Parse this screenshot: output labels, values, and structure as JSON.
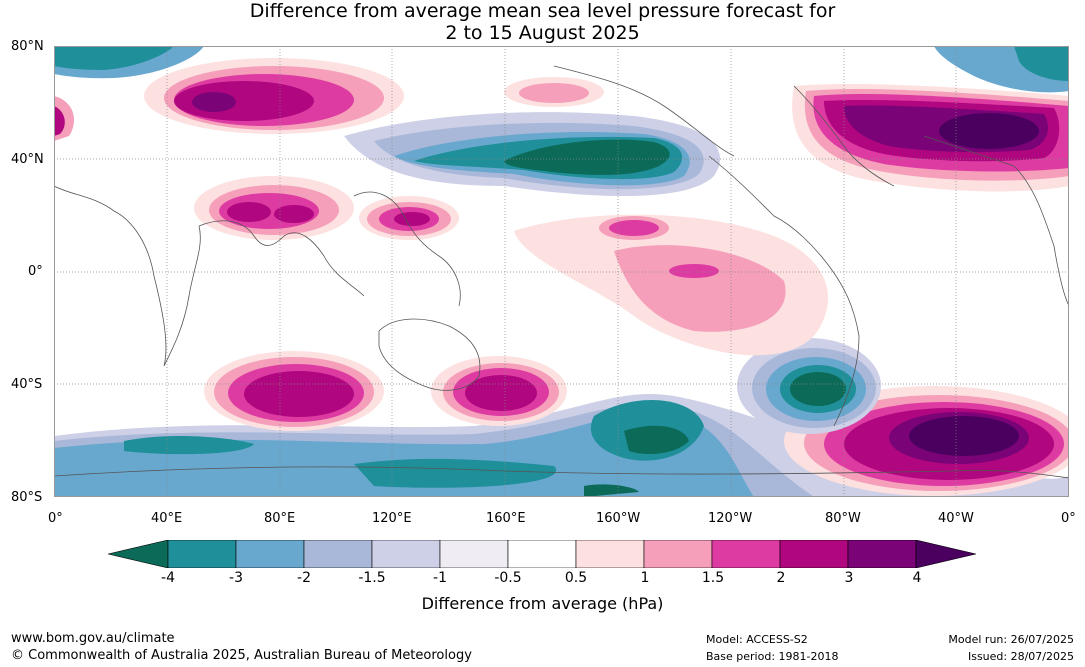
{
  "title": {
    "line1": "Difference from average mean sea level pressure forecast for",
    "line2": "2 to 15 August 2025"
  },
  "latitude_labels": [
    "80°N",
    "40°N",
    "0°",
    "40°S",
    "80°S"
  ],
  "longitude_labels": [
    "0°",
    "40°E",
    "80°E",
    "120°E",
    "160°E",
    "160°W",
    "120°W",
    "80°W",
    "40°W",
    "0°"
  ],
  "legend": {
    "title": "Difference from average (hPa)",
    "tick_labels": [
      "-4",
      "-3",
      "-2",
      "-1.5",
      "-1",
      "-0.5",
      "0.5",
      "1",
      "1.5",
      "2",
      "3",
      "4"
    ],
    "colors": [
      "#0b6b58",
      "#1f8f9a",
      "#68a8cf",
      "#a9b8d8",
      "#cdd0e6",
      "#f0ecf3",
      "#ffffff",
      "#fde0e0",
      "#f59fbb",
      "#de3ba2",
      "#b0067f",
      "#7a0477",
      "#4b005f"
    ]
  },
  "footer": {
    "url": "www.bom.gov.au/climate",
    "copyright": "© Commonwealth of Australia 2025, Australian Bureau of Meteorology",
    "model": "Model: ACCESS-S2",
    "base_period": "Base period: 1981-2018",
    "model_run": "Model run: 26/07/2025",
    "issued": "Issued: 28/07/2025"
  }
}
